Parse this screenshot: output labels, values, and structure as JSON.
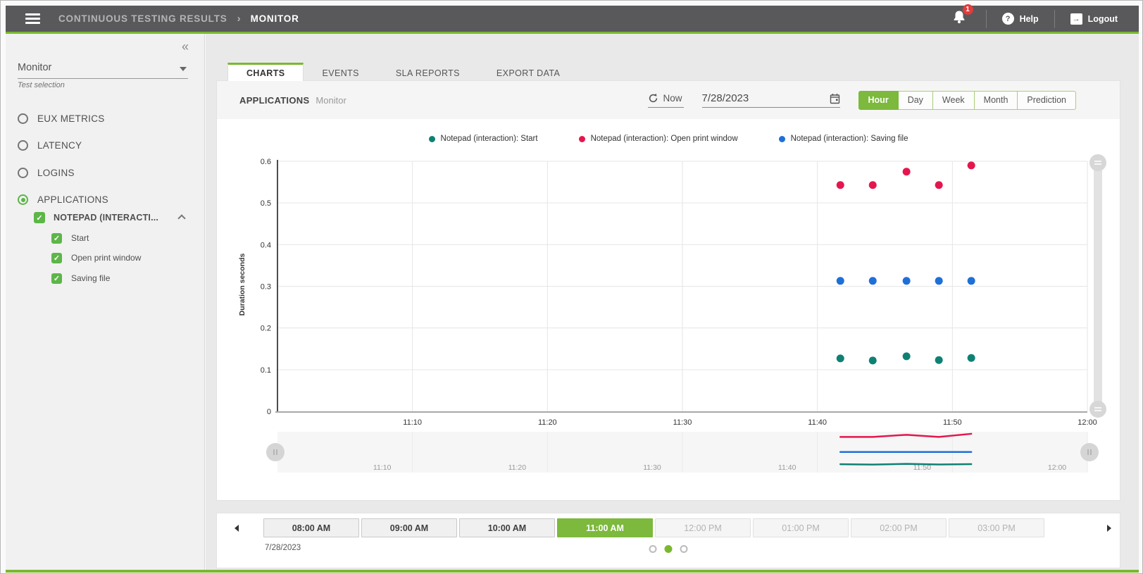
{
  "header": {
    "title": "CONTINUOUS TESTING RESULTS",
    "separator": "›",
    "page": "MONITOR",
    "notification_count": "1",
    "help_label": "Help",
    "logout_label": "Logout"
  },
  "sidebar": {
    "collapse_icon": "«",
    "dropdown_value": "Monitor",
    "dropdown_label": "Test selection",
    "radio_options": [
      {
        "label": "EUX METRICS",
        "selected": false
      },
      {
        "label": "LATENCY",
        "selected": false
      },
      {
        "label": "LOGINS",
        "selected": false
      },
      {
        "label": "APPLICATIONS",
        "selected": true
      }
    ],
    "tree": {
      "parent": {
        "label": "NOTEPAD (INTERACTI...",
        "checked": true
      },
      "children": [
        {
          "label": "Start",
          "checked": true
        },
        {
          "label": "Open print window",
          "checked": true
        },
        {
          "label": "Saving file",
          "checked": true
        }
      ]
    }
  },
  "tabs": [
    {
      "label": "CHARTS",
      "active": true
    },
    {
      "label": "EVENTS",
      "active": false
    },
    {
      "label": "SLA REPORTS",
      "active": false
    },
    {
      "label": "EXPORT DATA",
      "active": false
    }
  ],
  "toolbar": {
    "title": "APPLICATIONS",
    "subtitle": "Monitor",
    "now_label": "Now",
    "date_value": "7/28/2023",
    "range_buttons": [
      {
        "label": "Hour",
        "active": true
      },
      {
        "label": "Day",
        "active": false
      },
      {
        "label": "Week",
        "active": false
      },
      {
        "label": "Month",
        "active": false
      },
      {
        "label": "Prediction",
        "active": false
      }
    ]
  },
  "chart_data": {
    "type": "scatter",
    "ylabel": "Duration seconds",
    "ylim": [
      0,
      0.6
    ],
    "yticks": [
      0,
      0.1,
      0.2,
      0.3,
      0.4,
      0.5,
      0.6
    ],
    "ytick_labels": [
      "0",
      "0.1",
      "0.2",
      "0.3",
      "0.4",
      "0.5",
      "0.6"
    ],
    "x_axis_times": [
      "11:10",
      "11:20",
      "11:30",
      "11:40",
      "11:50",
      "12:00"
    ],
    "x_range_minutes": [
      0,
      60
    ],
    "x_start_time": "11:00",
    "grid": true,
    "legend_position": "top",
    "series": [
      {
        "name": "Notepad (interaction): Start",
        "color": "#0e8174",
        "points": [
          {
            "time": "11:42",
            "m": 41.7,
            "v": 0.127
          },
          {
            "time": "11:44",
            "m": 44.1,
            "v": 0.122
          },
          {
            "time": "11:47",
            "m": 46.6,
            "v": 0.132
          },
          {
            "time": "11:49",
            "m": 49.0,
            "v": 0.123
          },
          {
            "time": "11:51",
            "m": 51.4,
            "v": 0.128
          }
        ]
      },
      {
        "name": "Notepad (interaction): Open print window",
        "color": "#e5164e",
        "points": [
          {
            "time": "11:42",
            "m": 41.7,
            "v": 0.543
          },
          {
            "time": "11:44",
            "m": 44.1,
            "v": 0.543
          },
          {
            "time": "11:47",
            "m": 46.6,
            "v": 0.575
          },
          {
            "time": "11:49",
            "m": 49.0,
            "v": 0.543
          },
          {
            "time": "11:51",
            "m": 51.4,
            "v": 0.59
          }
        ]
      },
      {
        "name": "Notepad (interaction): Saving file",
        "color": "#1f6fd9",
        "points": [
          {
            "time": "11:42",
            "m": 41.7,
            "v": 0.313
          },
          {
            "time": "11:44",
            "m": 44.1,
            "v": 0.313
          },
          {
            "time": "11:47",
            "m": 46.6,
            "v": 0.313
          },
          {
            "time": "11:49",
            "m": 49.0,
            "v": 0.313
          },
          {
            "time": "11:51",
            "m": 51.4,
            "v": 0.313
          }
        ]
      }
    ]
  },
  "bottom_bar": {
    "hours": [
      {
        "label": "08:00 AM",
        "state": "normal"
      },
      {
        "label": "09:00 AM",
        "state": "normal"
      },
      {
        "label": "10:00 AM",
        "state": "normal"
      },
      {
        "label": "11:00 AM",
        "state": "active"
      },
      {
        "label": "12:00 PM",
        "state": "disabled"
      },
      {
        "label": "01:00 PM",
        "state": "disabled"
      },
      {
        "label": "02:00 PM",
        "state": "disabled"
      },
      {
        "label": "03:00 PM",
        "state": "disabled"
      }
    ],
    "date_label": "7/28/2023",
    "pagination": [
      {
        "active": false
      },
      {
        "active": true
      },
      {
        "active": false
      }
    ]
  },
  "colors": {
    "accent_green": "#7ab82f",
    "header_bg": "#59595b",
    "badge_red": "#e23c3c",
    "active_button_green": "#7cb93c"
  }
}
